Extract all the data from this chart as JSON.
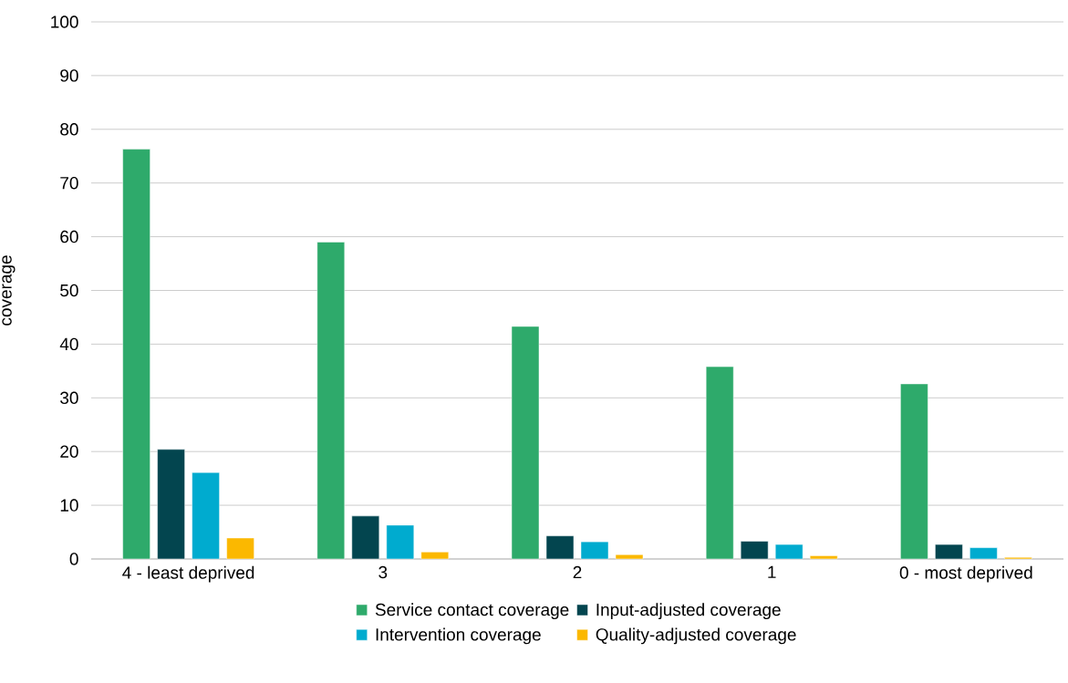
{
  "chart_data": {
    "type": "bar",
    "ylabel": "coverage",
    "categories": [
      "4 - least deprived",
      "3",
      "2",
      "1",
      "0 - most deprived"
    ],
    "series": [
      {
        "name": "Service contact coverage",
        "color": "#2eaa6b",
        "values": [
          76.3,
          59.0,
          43.3,
          35.8,
          32.6
        ]
      },
      {
        "name": "Input-adjusted coverage",
        "color": "#03454f",
        "values": [
          20.4,
          8.0,
          4.3,
          3.3,
          2.7
        ]
      },
      {
        "name": "Intervention coverage",
        "color": "#00abcf",
        "values": [
          16.1,
          6.3,
          3.2,
          2.7,
          2.1
        ]
      },
      {
        "name": "Quality-adjusted coverage",
        "color": "#fbb800",
        "values": [
          3.9,
          1.3,
          0.8,
          0.6,
          0.3
        ]
      }
    ],
    "ylim": [
      0,
      100
    ],
    "yticks": [
      0,
      10,
      20,
      30,
      40,
      50,
      60,
      70,
      80,
      90,
      100
    ],
    "grid": "y",
    "legend": "bottom"
  }
}
